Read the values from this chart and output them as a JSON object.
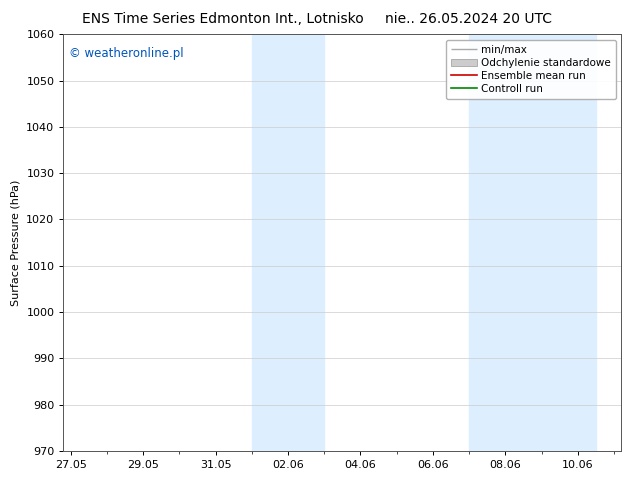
{
  "title_left": "ENS Time Series Edmonton Int., Lotnisko",
  "title_right": "nie.. 26.05.2024 20 UTC",
  "ylabel": "Surface Pressure (hPa)",
  "ylim": [
    970,
    1060
  ],
  "yticks": [
    970,
    980,
    990,
    1000,
    1010,
    1020,
    1030,
    1040,
    1050,
    1060
  ],
  "xtick_labels": [
    "27.05",
    "29.05",
    "31.05",
    "02.06",
    "04.06",
    "06.06",
    "08.06",
    "10.06"
  ],
  "xtick_positions": [
    0,
    2,
    4,
    6,
    8,
    10,
    12,
    14
  ],
  "xlim": [
    -0.2,
    15.2
  ],
  "shaded_bands": [
    {
      "x_start": 5.0,
      "x_end": 7.0
    },
    {
      "x_start": 11.0,
      "x_end": 14.5
    }
  ],
  "shaded_color": "#ddeeff",
  "watermark_text": "© weatheronline.pl",
  "watermark_color": "#0055bb",
  "legend_entries": [
    {
      "label": "min/max",
      "color": "#aaaaaa",
      "style": "errorbar"
    },
    {
      "label": "Odchylenie standardowe",
      "color": "#cccccc",
      "style": "band"
    },
    {
      "label": "Ensemble mean run",
      "color": "#cc0000",
      "style": "line"
    },
    {
      "label": "Controll run",
      "color": "#008800",
      "style": "line"
    }
  ],
  "grid_color": "#cccccc",
  "background_color": "#ffffff",
  "title_fontsize": 10,
  "tick_fontsize": 8,
  "ylabel_fontsize": 8,
  "legend_fontsize": 7.5,
  "watermark_fontsize": 8.5
}
